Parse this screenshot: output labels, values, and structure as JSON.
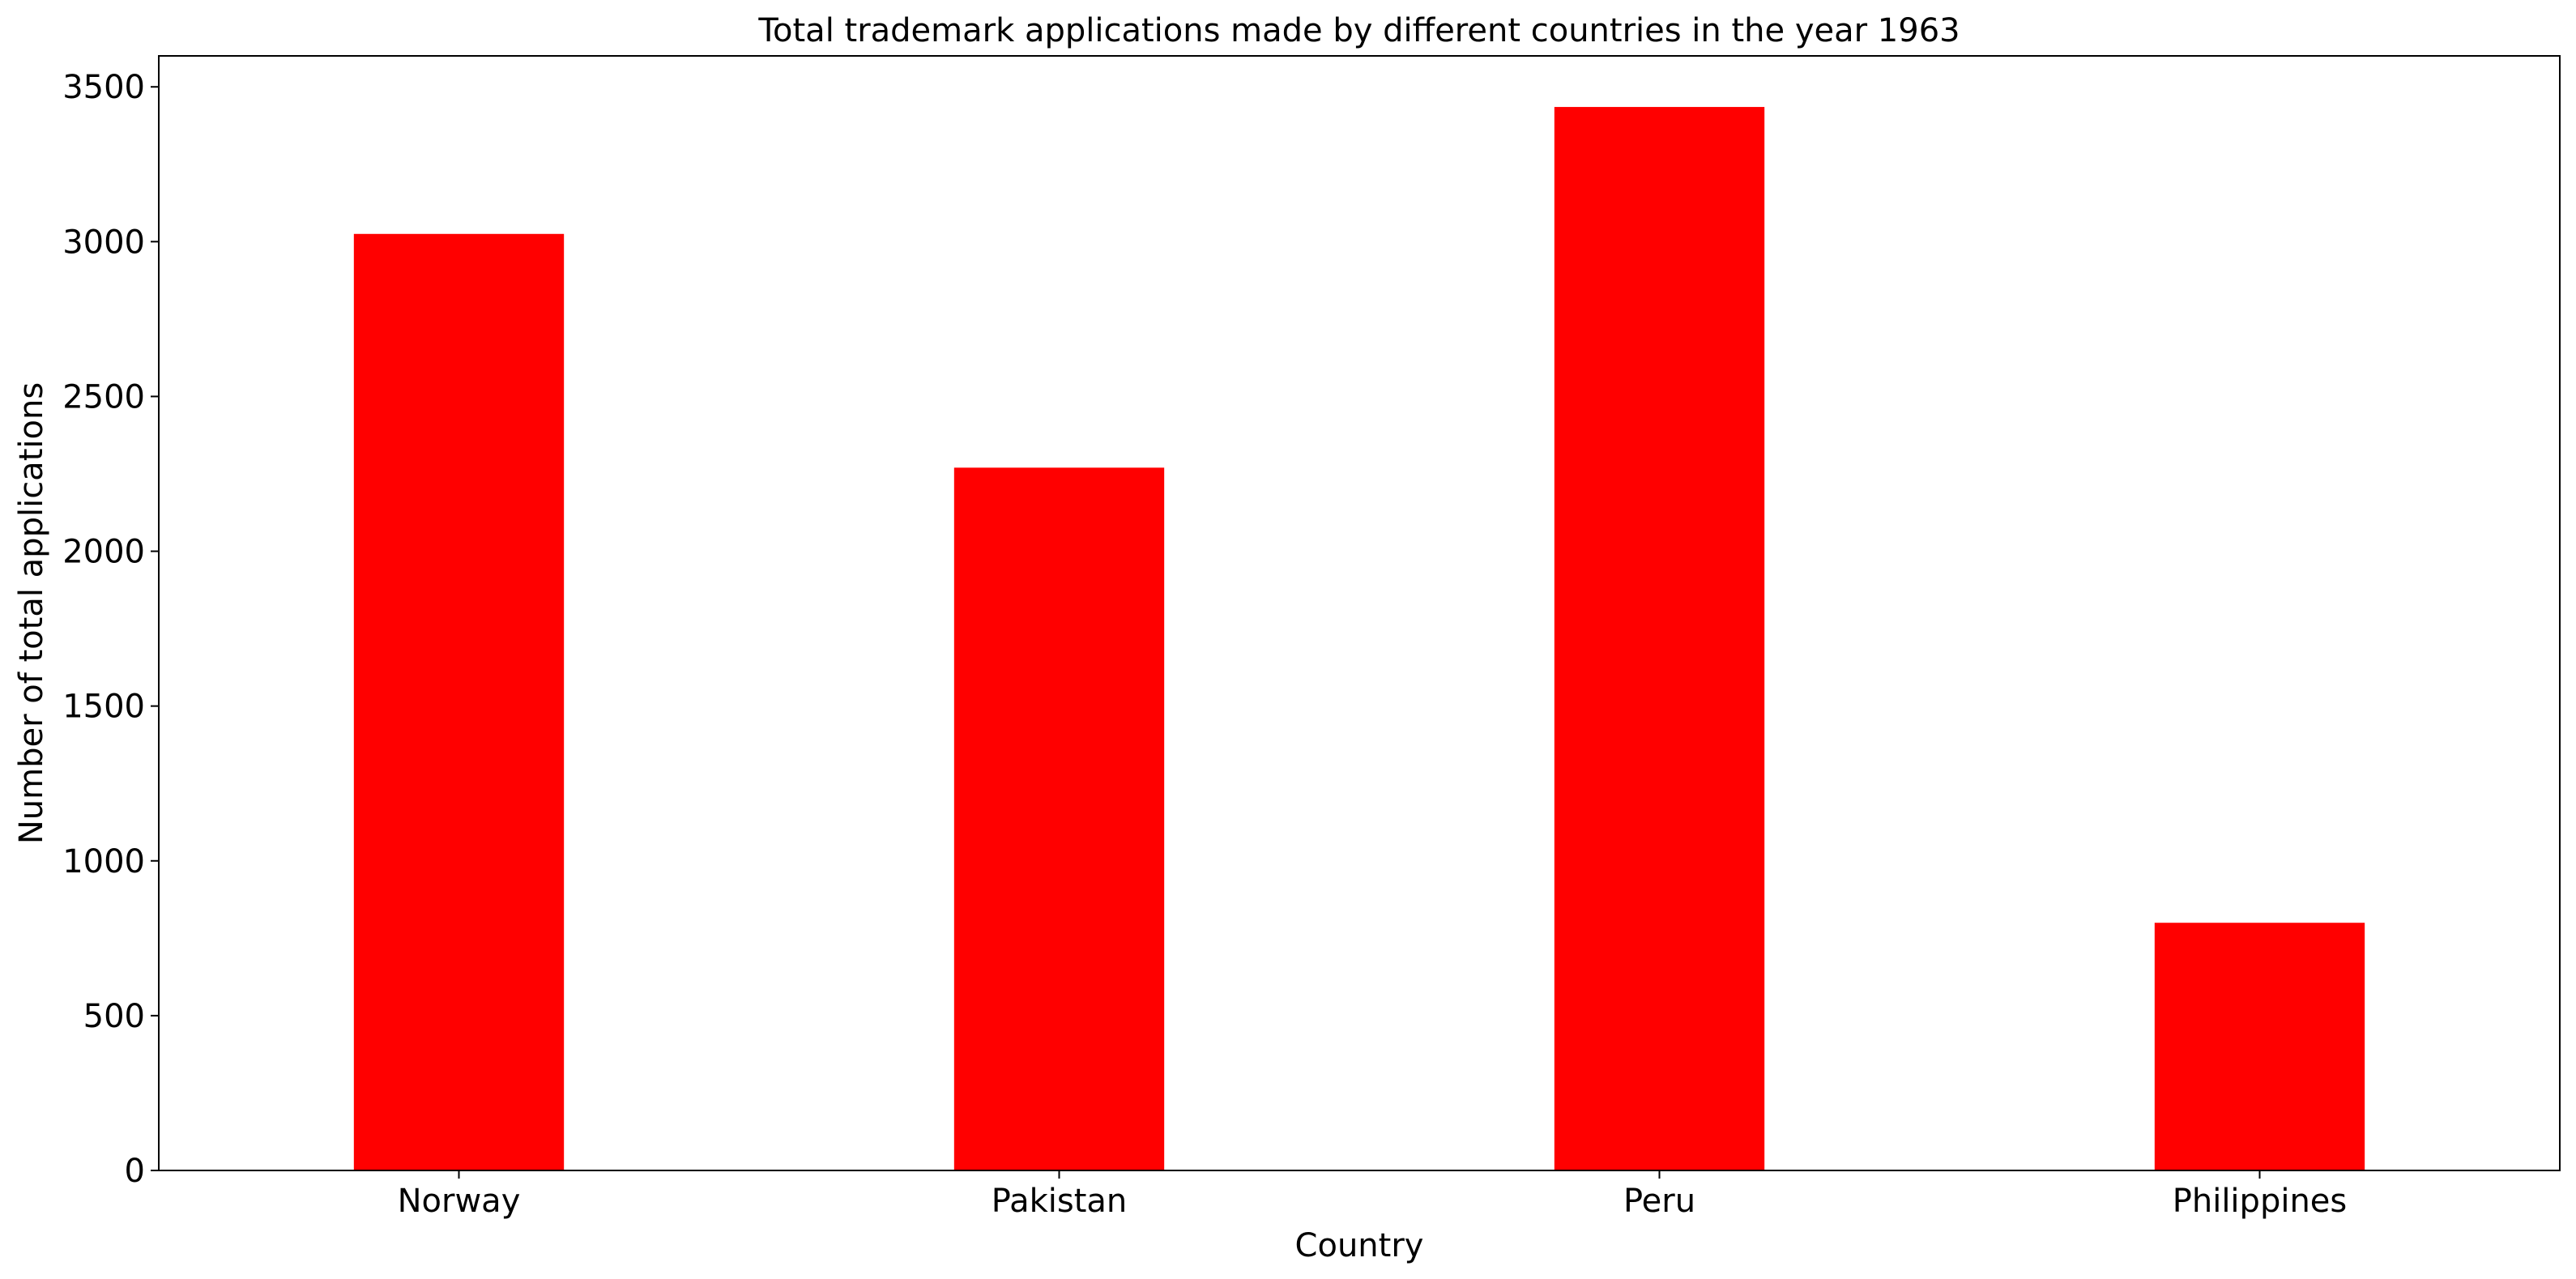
{
  "chart_data": {
    "type": "bar",
    "title": "Total trademark applications made by different countries in the year 1963",
    "xlabel": "Country",
    "ylabel": "Number of total applications",
    "categories": [
      "Norway",
      "Pakistan",
      "Peru",
      "Philippines"
    ],
    "values": [
      3025,
      2270,
      3435,
      800
    ],
    "ylim": [
      0,
      3600
    ],
    "yticks": [
      0,
      500,
      1000,
      1500,
      2000,
      2500,
      3000,
      3500
    ],
    "bar_color": "#ff0000",
    "grid": false,
    "legend": "none"
  }
}
